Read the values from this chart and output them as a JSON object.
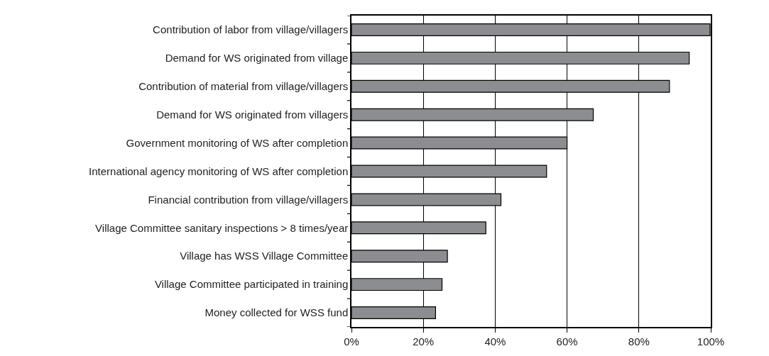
{
  "chart_data": {
    "type": "bar",
    "orientation": "horizontal",
    "categories": [
      "Contribution of labor from village/villagers",
      "Demand for WS originated from village",
      "Contribution of material from village/villagers",
      "Demand for WS originated from villagers",
      "Government monitoring of WS after completion",
      "International agency monitoring of WS after completion",
      "Financial contribution from village/villagers",
      "Village Committee sanitary inspections > 8 times/year",
      "Village has WSS Village Committee",
      "Village Committee participated in training",
      "Money collected for WSS fund"
    ],
    "values": [
      99.8,
      94,
      88.5,
      67.3,
      60,
      54.3,
      41.6,
      37.4,
      26.7,
      25.2,
      23.4
    ],
    "color": "#8c8d90",
    "xlim": [
      0,
      100
    ],
    "xticks": [
      {
        "value": 0,
        "label": "0%"
      },
      {
        "value": 20,
        "label": "20%"
      },
      {
        "value": 40,
        "label": "40%"
      },
      {
        "value": 60,
        "label": "60%"
      },
      {
        "value": 80,
        "label": "80%"
      },
      {
        "value": 100,
        "label": "100%"
      }
    ],
    "grid": "x"
  }
}
